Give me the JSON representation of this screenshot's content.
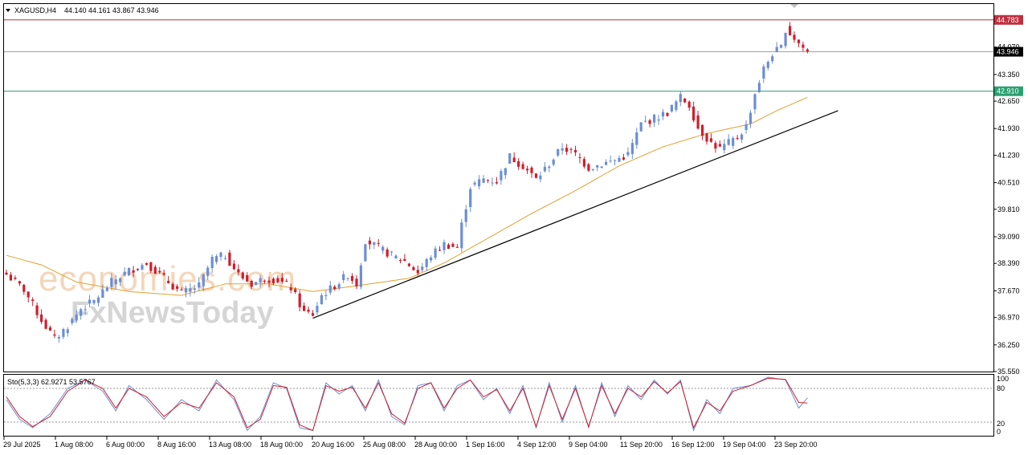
{
  "header": {
    "symbol": "XAGUSD,H4",
    "ohlc": "44.140 44.161 43.867 43.946"
  },
  "indicator": {
    "label": "Sto(5,3,3) 62.9271 53.5767",
    "levels": [
      "100",
      "80",
      "20",
      "0"
    ]
  },
  "watermark": {
    "line1": "economies.com",
    "line2": "FxNewsToday"
  },
  "colors": {
    "bull": "#6b8fd6",
    "bear": "#d21d2b",
    "ma": "#e0a030",
    "trend": "#000000",
    "resistance": "#c03040",
    "support": "#2aa070",
    "current": "#a0a0a0",
    "sto_main": "#6b8fd6",
    "sto_signal": "#d21d2b"
  },
  "chart_data": {
    "type": "candlestick",
    "title": "XAGUSD,H4",
    "ylim": [
      35.55,
      45.2
    ],
    "y_ticks": [
      "44.070",
      "43.350",
      "42.650",
      "41.930",
      "41.230",
      "40.510",
      "39.810",
      "39.090",
      "38.390",
      "37.670",
      "36.970",
      "36.250",
      "35.550"
    ],
    "x_ticks": [
      "29 Jul 2025",
      "1 Aug 08:00",
      "6 Aug 00:00",
      "8 Aug 16:00",
      "13 Aug 08:00",
      "18 Aug 00:00",
      "20 Aug 16:00",
      "25 Aug 08:00",
      "28 Aug 00:00",
      "1 Sep 16:00",
      "4 Sep 12:00",
      "9 Sep 04:00",
      "11 Sep 20:00",
      "16 Sep 12:00",
      "19 Sep 04:00",
      "23 Sep 20:00"
    ],
    "horizontal_levels": [
      {
        "value": 44.783,
        "label": "44.783"
      },
      {
        "value": 43.946,
        "label": "43.946"
      },
      {
        "value": 42.91,
        "label": "42.910"
      }
    ],
    "close_anchors": [
      [
        0,
        38.1
      ],
      [
        4,
        37.7
      ],
      [
        8,
        36.9
      ],
      [
        11,
        36.4
      ],
      [
        14,
        36.75
      ],
      [
        17,
        37.2
      ],
      [
        20,
        37.4
      ],
      [
        24,
        37.9
      ],
      [
        28,
        38.2
      ],
      [
        32,
        38.4
      ],
      [
        35,
        38.1
      ],
      [
        40,
        37.6
      ],
      [
        44,
        37.8
      ],
      [
        47,
        38.5
      ],
      [
        50,
        38.6
      ],
      [
        53,
        38.1
      ],
      [
        56,
        37.85
      ],
      [
        59,
        38.0
      ],
      [
        62,
        37.95
      ],
      [
        65,
        37.75
      ],
      [
        68,
        37.1
      ],
      [
        70,
        37.05
      ],
      [
        72,
        37.55
      ],
      [
        75,
        37.8
      ],
      [
        78,
        38.1
      ],
      [
        80,
        37.85
      ],
      [
        82,
        39.0
      ],
      [
        85,
        38.8
      ],
      [
        88,
        38.6
      ],
      [
        91,
        38.45
      ],
      [
        94,
        38.15
      ],
      [
        97,
        38.6
      ],
      [
        100,
        38.9
      ],
      [
        103,
        38.8
      ],
      [
        104,
        39.4
      ],
      [
        106,
        40.4
      ],
      [
        109,
        40.6
      ],
      [
        112,
        40.55
      ],
      [
        115,
        41.2
      ],
      [
        118,
        40.95
      ],
      [
        121,
        40.6
      ],
      [
        124,
        41.0
      ],
      [
        127,
        41.45
      ],
      [
        130,
        41.25
      ],
      [
        133,
        40.9
      ],
      [
        136,
        41.0
      ],
      [
        139,
        41.1
      ],
      [
        142,
        41.25
      ],
      [
        145,
        42.05
      ],
      [
        148,
        42.2
      ],
      [
        151,
        42.35
      ],
      [
        154,
        42.75
      ],
      [
        156,
        42.55
      ],
      [
        158,
        41.95
      ],
      [
        161,
        41.55
      ],
      [
        163,
        41.4
      ],
      [
        165,
        41.55
      ],
      [
        167,
        41.7
      ],
      [
        169,
        42.0
      ],
      [
        171,
        42.85
      ],
      [
        173,
        43.5
      ],
      [
        175,
        43.9
      ],
      [
        177,
        44.05
      ],
      [
        178,
        44.55
      ],
      [
        180,
        44.3
      ],
      [
        182,
        44.05
      ],
      [
        183,
        43.946
      ]
    ],
    "ma_points": [
      [
        0,
        38.6
      ],
      [
        8,
        38.35
      ],
      [
        16,
        37.9
      ],
      [
        28,
        37.65
      ],
      [
        40,
        37.55
      ],
      [
        50,
        37.85
      ],
      [
        60,
        37.85
      ],
      [
        70,
        37.65
      ],
      [
        80,
        37.8
      ],
      [
        92,
        38.0
      ],
      [
        100,
        38.4
      ],
      [
        110,
        39.05
      ],
      [
        120,
        39.7
      ],
      [
        130,
        40.3
      ],
      [
        140,
        40.95
      ],
      [
        150,
        41.45
      ],
      [
        160,
        41.8
      ],
      [
        170,
        42.05
      ],
      [
        176,
        42.4
      ],
      [
        183,
        42.75
      ]
    ],
    "trendline": [
      [
        70,
        36.95
      ],
      [
        190,
        42.4
      ]
    ],
    "stochastic": {
      "ylim": [
        0,
        100
      ],
      "levels": [
        80,
        20
      ],
      "main": [
        [
          0,
          60
        ],
        [
          3,
          25
        ],
        [
          6,
          10
        ],
        [
          10,
          35
        ],
        [
          14,
          80
        ],
        [
          18,
          95
        ],
        [
          22,
          75
        ],
        [
          25,
          40
        ],
        [
          28,
          85
        ],
        [
          32,
          60
        ],
        [
          36,
          25
        ],
        [
          40,
          60
        ],
        [
          44,
          40
        ],
        [
          48,
          95
        ],
        [
          52,
          60
        ],
        [
          55,
          5
        ],
        [
          58,
          30
        ],
        [
          61,
          90
        ],
        [
          64,
          80
        ],
        [
          67,
          10
        ],
        [
          70,
          5
        ],
        [
          73,
          90
        ],
        [
          76,
          70
        ],
        [
          79,
          85
        ],
        [
          82,
          40
        ],
        [
          85,
          95
        ],
        [
          88,
          30
        ],
        [
          91,
          15
        ],
        [
          94,
          85
        ],
        [
          97,
          90
        ],
        [
          100,
          40
        ],
        [
          103,
          85
        ],
        [
          106,
          95
        ],
        [
          109,
          60
        ],
        [
          112,
          80
        ],
        [
          115,
          35
        ],
        [
          118,
          85
        ],
        [
          121,
          10
        ],
        [
          124,
          90
        ],
        [
          127,
          20
        ],
        [
          130,
          85
        ],
        [
          133,
          10
        ],
        [
          136,
          90
        ],
        [
          139,
          30
        ],
        [
          142,
          85
        ],
        [
          145,
          60
        ],
        [
          148,
          95
        ],
        [
          151,
          70
        ],
        [
          154,
          95
        ],
        [
          157,
          5
        ],
        [
          160,
          60
        ],
        [
          163,
          35
        ],
        [
          166,
          80
        ],
        [
          170,
          85
        ],
        [
          174,
          100
        ],
        [
          178,
          95
        ],
        [
          181,
          45
        ],
        [
          183,
          63
        ]
      ],
      "signal": [
        [
          0,
          65
        ],
        [
          3,
          30
        ],
        [
          6,
          12
        ],
        [
          10,
          30
        ],
        [
          14,
          75
        ],
        [
          18,
          95
        ],
        [
          22,
          80
        ],
        [
          25,
          45
        ],
        [
          28,
          80
        ],
        [
          32,
          65
        ],
        [
          36,
          30
        ],
        [
          40,
          55
        ],
        [
          44,
          45
        ],
        [
          48,
          90
        ],
        [
          52,
          65
        ],
        [
          55,
          10
        ],
        [
          58,
          25
        ],
        [
          61,
          85
        ],
        [
          64,
          82
        ],
        [
          67,
          15
        ],
        [
          70,
          5
        ],
        [
          73,
          85
        ],
        [
          76,
          75
        ],
        [
          79,
          82
        ],
        [
          82,
          45
        ],
        [
          85,
          90
        ],
        [
          88,
          35
        ],
        [
          91,
          18
        ],
        [
          94,
          80
        ],
        [
          97,
          90
        ],
        [
          100,
          45
        ],
        [
          103,
          80
        ],
        [
          106,
          95
        ],
        [
          109,
          65
        ],
        [
          112,
          78
        ],
        [
          115,
          40
        ],
        [
          118,
          80
        ],
        [
          121,
          12
        ],
        [
          124,
          85
        ],
        [
          127,
          25
        ],
        [
          130,
          80
        ],
        [
          133,
          12
        ],
        [
          136,
          85
        ],
        [
          139,
          35
        ],
        [
          142,
          80
        ],
        [
          145,
          65
        ],
        [
          148,
          92
        ],
        [
          151,
          72
        ],
        [
          154,
          92
        ],
        [
          157,
          10
        ],
        [
          160,
          55
        ],
        [
          163,
          40
        ],
        [
          166,
          75
        ],
        [
          170,
          85
        ],
        [
          174,
          98
        ],
        [
          178,
          96
        ],
        [
          181,
          55
        ],
        [
          183,
          54
        ]
      ]
    }
  }
}
